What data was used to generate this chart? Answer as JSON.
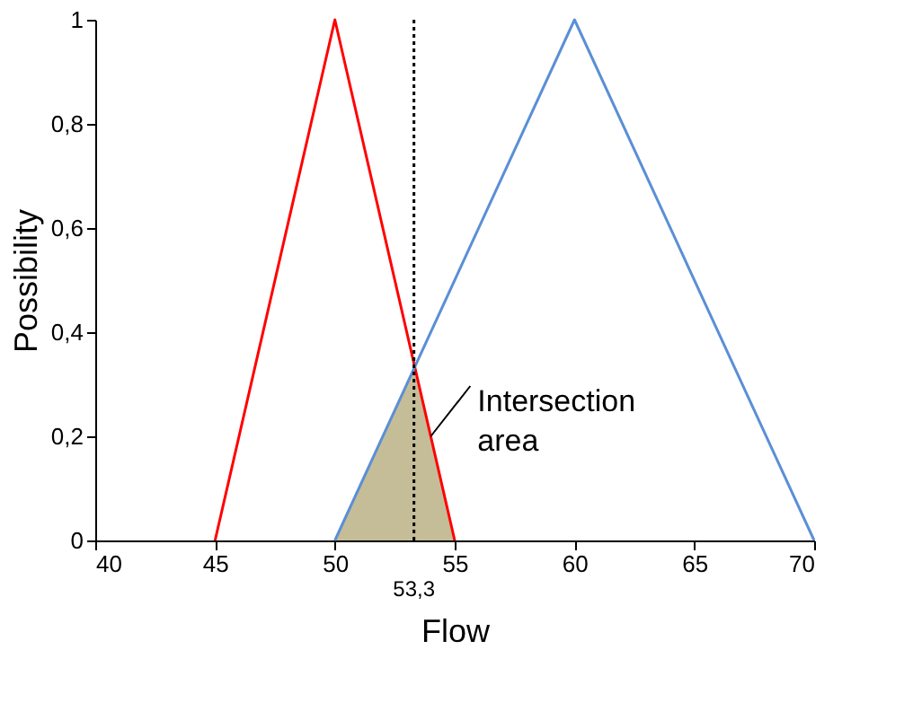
{
  "chart_data": {
    "type": "line",
    "xlabel": "Flow",
    "ylabel": "Possibility",
    "xlim": [
      40,
      70
    ],
    "xticks": [
      40,
      45,
      50,
      55,
      60,
      65,
      70
    ],
    "ylim": [
      0,
      1
    ],
    "yticks": [
      0,
      {
        "value": 0.2,
        "label": "0,2"
      },
      {
        "value": 0.4,
        "label": "0,4"
      },
      {
        "value": 0.6,
        "label": "0,6"
      },
      {
        "value": 0.8,
        "label": "0,8"
      },
      1
    ],
    "series": [
      {
        "type": "area",
        "color": "#c4bd97",
        "x": [
          50,
          53.3,
          55
        ],
        "values": [
          0,
          0.33,
          0
        ]
      },
      {
        "color": "#ff0000",
        "x": [
          45,
          50,
          55
        ],
        "values": [
          0,
          1,
          0
        ]
      },
      {
        "color": "#5b8fd6",
        "x": [
          50,
          60,
          70
        ],
        "values": [
          0,
          1,
          0
        ]
      }
    ],
    "ref_lines": [
      {
        "axis": "x",
        "value": 53.3,
        "label": "53,3",
        "color": "#000000",
        "line_style": "dotted"
      }
    ],
    "annotations": [
      {
        "text": "Intersection area",
        "x": 54,
        "y": 0.2
      }
    ],
    "grid": false,
    "marker": "none",
    "line_style": "solid"
  }
}
